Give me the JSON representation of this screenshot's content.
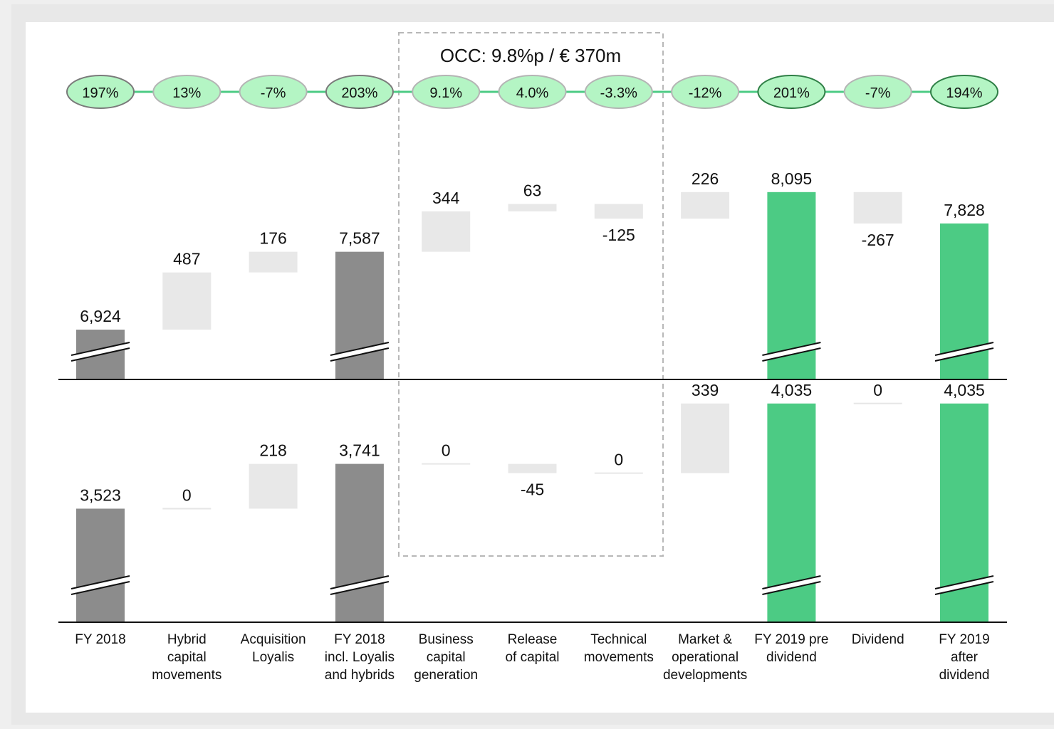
{
  "chart_data": {
    "type": "waterfall",
    "categories": [
      [
        "FY 2018"
      ],
      [
        "Hybrid",
        "capital",
        "movements"
      ],
      [
        "Acquisition",
        "Loyalis"
      ],
      [
        "FY 2018",
        "incl. Loyalis",
        "and hybrids"
      ],
      [
        "Business",
        "capital",
        "generation"
      ],
      [
        "Release",
        "of capital"
      ],
      [
        "Technical",
        "movements"
      ],
      [
        "Market &",
        "operational",
        "developments"
      ],
      [
        "FY 2019 pre",
        "dividend"
      ],
      [
        "Dividend"
      ],
      [
        "FY 2019",
        "after",
        "dividend"
      ]
    ],
    "ratios": [
      "197%",
      "13%",
      "-7%",
      "203%",
      "9.1%",
      "4.0%",
      "-3.3%",
      "-12%",
      "201%",
      "-7%",
      "194%"
    ],
    "occ_label": "OCC: 9.8%p / € 370m",
    "top_panel": {
      "values": [
        6924,
        487,
        176,
        7587,
        344,
        63,
        -125,
        226,
        8095,
        -267,
        7828
      ],
      "labels": [
        "6,924",
        "487",
        "176",
        "7,587",
        "344",
        "63",
        "-125",
        "226",
        "8,095",
        "-267",
        "7,828"
      ]
    },
    "bottom_panel": {
      "values": [
        3523,
        0,
        218,
        3741,
        0,
        -45,
        0,
        339,
        4035,
        0,
        4035
      ],
      "labels": [
        "3,523",
        "0",
        "218",
        "3,741",
        "0",
        "-45",
        "0",
        "339",
        "4,035",
        "0",
        "4,035"
      ]
    },
    "bar_kinds": [
      "total-grey",
      "delta",
      "delta",
      "total-grey",
      "delta",
      "delta",
      "delta",
      "delta",
      "total-green",
      "delta",
      "total-green"
    ],
    "colors": {
      "total_grey": "#8c8c8c",
      "total_green": "#4ccb84",
      "delta": "#e8e8e8",
      "ratio_fill": "#b4f5c4",
      "ratio_line": "#4ccb84",
      "occ_box": "#b8b8b8"
    }
  }
}
